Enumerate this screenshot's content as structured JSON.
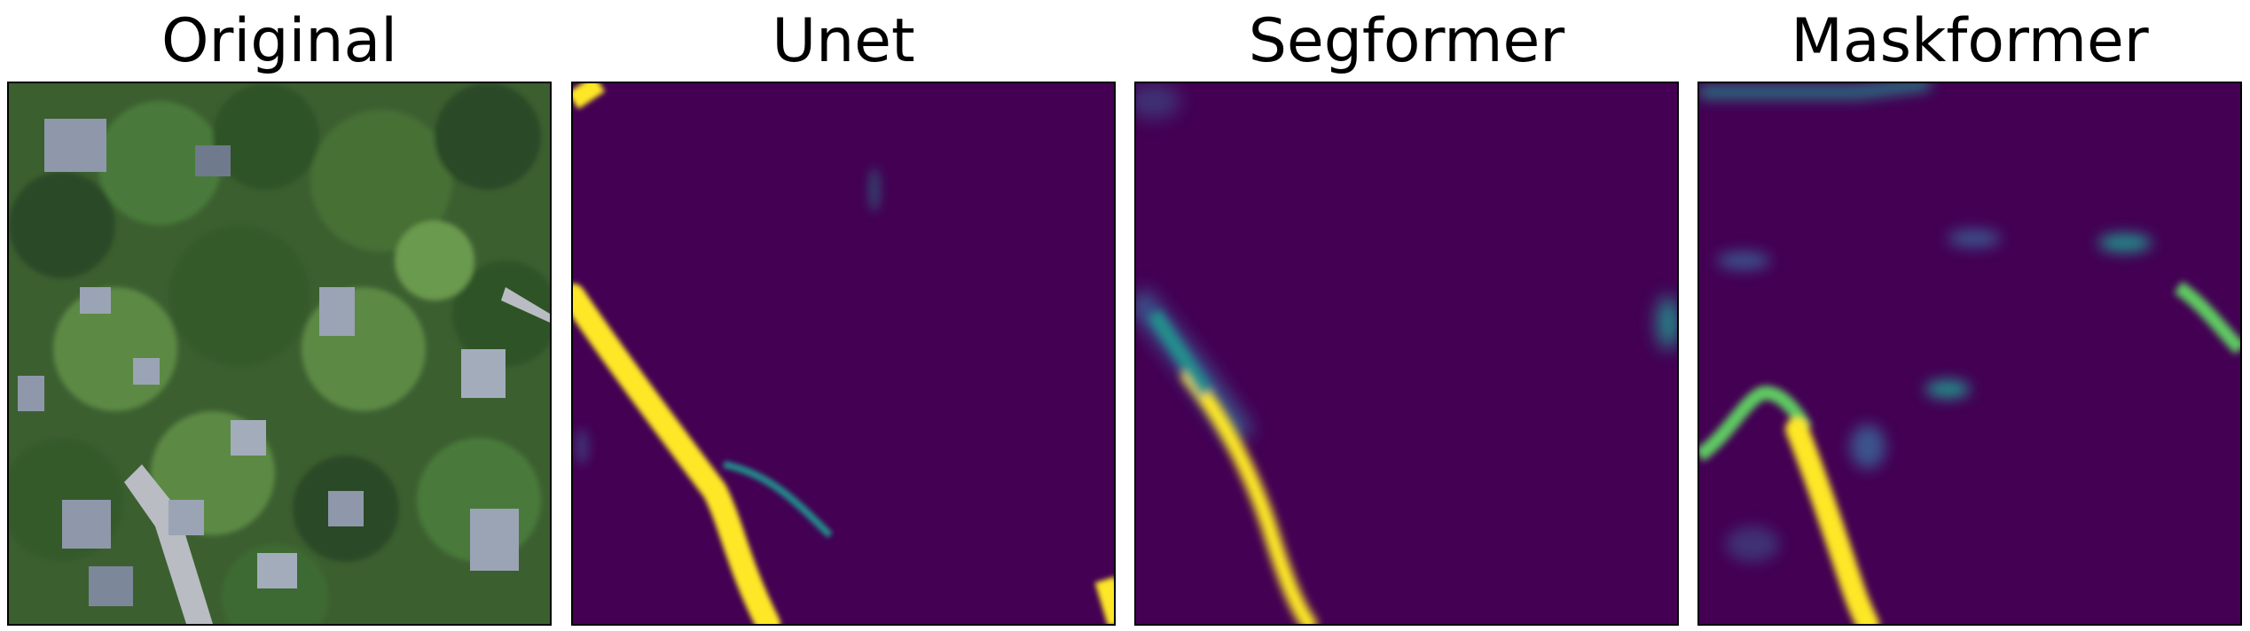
{
  "panels": [
    {
      "title": "Original"
    },
    {
      "title": "Unet"
    },
    {
      "title": "Segformer"
    },
    {
      "title": "Maskformer"
    }
  ],
  "colors": {
    "background": "#ffffff",
    "title_text": "#000000",
    "frame_border": "#000000",
    "mask_low": "#440154",
    "mask_mid": "#21918c",
    "mask_high": "#fde725",
    "tree_dark": "#2a4a26",
    "tree_mid": "#3e6a32",
    "tree_light": "#5b8a44",
    "roof": "#9aa4b4",
    "road": "#b9bcc2"
  }
}
